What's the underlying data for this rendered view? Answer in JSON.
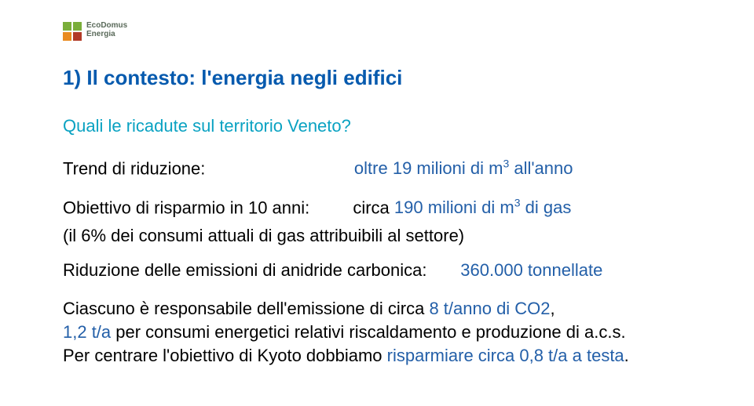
{
  "colors": {
    "title_blue": "#065aae",
    "subtitle_cyan": "#0aa2c2",
    "body_black": "#000000",
    "highlight_blue": "#235fa8",
    "logo_green": "#7aae3a",
    "logo_orange": "#e98b20",
    "logo_red": "#b23a27",
    "logo_text": "#5a6a5a"
  },
  "logo": {
    "line1": "EcoDomus",
    "line2": "Energia"
  },
  "title": "1) Il contesto: l'energia negli edifici",
  "subtitle": "Quali le ricadute sul territorio Veneto?",
  "trend": {
    "label": "Trend di riduzione:",
    "value_pre": "oltre 19 milioni di m",
    "value_sup": "3",
    "value_post": " all'anno"
  },
  "obiettivo": {
    "label": "Obiettivo di risparmio in 10 anni:",
    "value_lead": "circa ",
    "value_num": "190 milioni di m",
    "value_sup": "3",
    "value_tail": " di gas",
    "note": "(il 6% dei consumi attuali di gas attribuibili al settore)"
  },
  "riduzione": {
    "label": "Riduzione delle emissioni di anidride carbonica:",
    "value": "360.000 tonnellate"
  },
  "para": {
    "p1a": "Ciascuno è responsabile dell'emissione di circa ",
    "p1b": "8 t/anno di CO2",
    "p1c": ",",
    "p2a": "1,2 t/a",
    "p2b": " per consumi energetici relativi riscaldamento e produzione di a.c.s.",
    "p3a": "Per centrare l'obiettivo di Kyoto dobbiamo ",
    "p3b": "risparmiare circa 0,8 t/a a testa",
    "p3c": "."
  },
  "fontsize": {
    "title": 26,
    "subtitle": 22,
    "body": 22
  }
}
